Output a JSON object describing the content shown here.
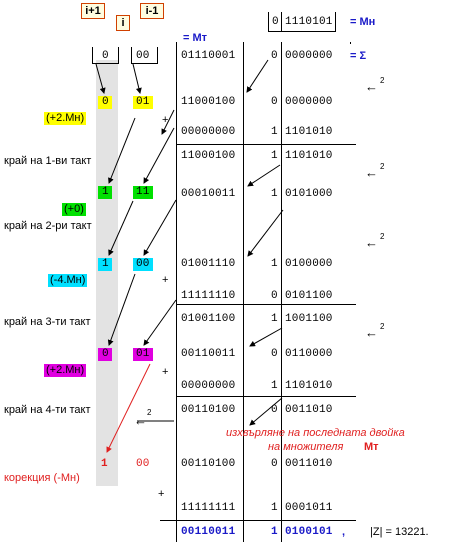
{
  "header": {
    "labels": {
      "i_plus_1": "i+1",
      "i": "i",
      "i_minus_1": "i-1"
    },
    "top_bits": {
      "bit_i1": "0",
      "bits": "00"
    },
    "mn_bit": "0",
    "mn_value": "1110101",
    "mn_label": "= Мн",
    "mt_label": "= Мт",
    "row1": {
      "left": "01110001",
      "bit": "0",
      "right": "0000000",
      "label": "= Σ"
    }
  },
  "steps": [
    {
      "bit_i1": "0",
      "bits": "01",
      "note": "(+2.Мн)"
    },
    {
      "bit_i1": "1",
      "bits": "11",
      "note": "(+0)"
    },
    {
      "bit_i1": "1",
      "bits": "00",
      "note": "(-4.Мн)"
    },
    {
      "bit_i1": "0",
      "bits": "01",
      "note": "(+2.Мн)"
    }
  ],
  "tact_labels": [
    "край на 1-ви такт",
    "край на 2-ри такт",
    "край на 3-ти такт",
    "край на 4-ти такт"
  ],
  "rows": [
    {
      "left": "11000100",
      "bit": "0",
      "right": "0000000"
    },
    {
      "left": "00000000",
      "bit": "1",
      "right": "1101010"
    },
    {
      "left": "11000100",
      "bit": "1",
      "right": "1101010"
    },
    {
      "left": "00010011",
      "bit": "1",
      "right": "0101000"
    },
    {
      "left": "01001110",
      "bit": "1",
      "right": "0100000"
    },
    {
      "left": "11111110",
      "bit": "0",
      "right": "0101100"
    },
    {
      "left": "01001100",
      "bit": "1",
      "right": "1001100"
    },
    {
      "left": "00110011",
      "bit": "0",
      "right": "0110000"
    },
    {
      "left": "00000000",
      "bit": "1",
      "right": "1101010"
    },
    {
      "left": "00110100",
      "bit": "0",
      "right": "0011010"
    },
    {
      "left": "00110100",
      "bit": "0",
      "right": "0011010"
    },
    {
      "left": "11111111",
      "bit": "1",
      "right": "0001011"
    }
  ],
  "plus_sign": "+",
  "shift": "2",
  "shift_arrow": "←",
  "correction": {
    "bit_i1": "1",
    "bits": "00",
    "label": "корекция (-Мн)"
  },
  "note_line1": "изхвърляне на последната двойка",
  "note_line2": "на множителя",
  "note_mt": "Мт",
  "result": {
    "left": "00110011",
    "bit": "1",
    "right": "0100101",
    "comma": ",",
    "z": "|Z| = 13221."
  },
  "colors": {
    "yellow": "#ffff00",
    "green": "#00e000",
    "cyan": "#00e0ff",
    "magenta": "#e000e0",
    "blue": "#1a1ac8",
    "red": "#e02020"
  }
}
